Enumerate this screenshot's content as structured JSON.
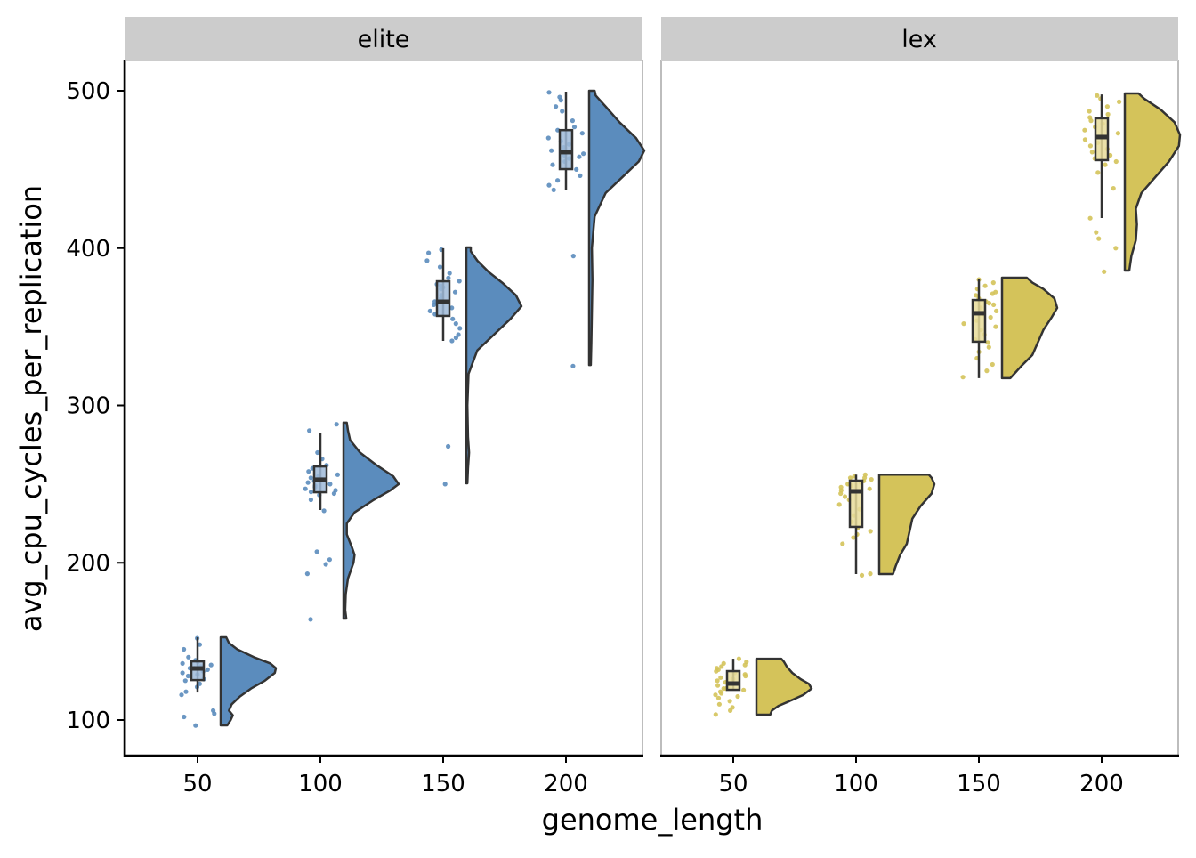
{
  "chart_data": {
    "type": "raincloud",
    "xlabel": "genome_length",
    "ylabel": "avg_cpu_cycles_per_replication",
    "ylim": [
      80,
      520
    ],
    "xlim": [
      20,
      230
    ],
    "x_ticks": [
      50,
      100,
      150,
      200
    ],
    "y_ticks": [
      100,
      200,
      300,
      400,
      500
    ],
    "grid": false,
    "panels": [
      {
        "facet": "elite",
        "color": "#5b8cbd",
        "box_fill": "#9fbad8",
        "groups": [
          {
            "x": 50,
            "whisker_low": 117.5,
            "q1": 125.4,
            "median": 132.8,
            "q3": 137.3,
            "whisker_high": 152.6,
            "violin_min": 96.6,
            "violin_max": 152.6,
            "density": [
              [
                96.6,
                0.12
              ],
              [
                100,
                0.18
              ],
              [
                103,
                0.22
              ],
              [
                106,
                0.15
              ],
              [
                110,
                0.2
              ],
              [
                115,
                0.35
              ],
              [
                120,
                0.55
              ],
              [
                125,
                0.8
              ],
              [
                130,
                0.98
              ],
              [
                133,
                1.0
              ],
              [
                136,
                0.9
              ],
              [
                140,
                0.6
              ],
              [
                145,
                0.3
              ],
              [
                149,
                0.15
              ],
              [
                152.6,
                0.1
              ]
            ],
            "points": [
              152,
              148,
              145,
              140,
              138,
              137,
              136,
              135,
              134,
              133,
              133,
              132,
              131,
              130,
              129,
              128,
              126,
              125,
              123,
              121,
              118,
              116,
              106,
              104,
              102,
              96.5
            ]
          },
          {
            "x": 100,
            "whisker_low": 233.5,
            "q1": 244.8,
            "median": 252.8,
            "q3": 261.2,
            "whisker_high": 282.2,
            "violin_min": 164.5,
            "violin_max": 289,
            "density": [
              [
                164.5,
                0.05
              ],
              [
                170,
                0.03
              ],
              [
                180,
                0.04
              ],
              [
                190,
                0.08
              ],
              [
                200,
                0.18
              ],
              [
                205,
                0.2
              ],
              [
                210,
                0.15
              ],
              [
                218,
                0.06
              ],
              [
                225,
                0.06
              ],
              [
                232,
                0.2
              ],
              [
                240,
                0.55
              ],
              [
                246,
                0.85
              ],
              [
                250,
                1.0
              ],
              [
                255,
                0.9
              ],
              [
                262,
                0.6
              ],
              [
                270,
                0.3
              ],
              [
                278,
                0.12
              ],
              [
                284,
                0.08
              ],
              [
                289,
                0.06
              ]
            ],
            "points": [
              288,
              284,
              270,
              266,
              262,
              260,
              258,
              256,
              255,
              254,
              253,
              252,
              251,
              250,
              249,
              248,
              247,
              246,
              245,
              244,
              243,
              240,
              233,
              207,
              202,
              199,
              193,
              164
            ]
          },
          {
            "x": 150,
            "whisker_low": 341,
            "q1": 356.9,
            "median": 365.9,
            "q3": 378.9,
            "whisker_high": 399.9,
            "violin_min": 250.5,
            "violin_max": 400.4,
            "density": [
              [
                250.5,
                0.02
              ],
              [
                260,
                0.03
              ],
              [
                270,
                0.05
              ],
              [
                280,
                0.03
              ],
              [
                300,
                0.02
              ],
              [
                320,
                0.04
              ],
              [
                335,
                0.2
              ],
              [
                345,
                0.5
              ],
              [
                355,
                0.8
              ],
              [
                363,
                1.0
              ],
              [
                370,
                0.9
              ],
              [
                378,
                0.65
              ],
              [
                385,
                0.4
              ],
              [
                392,
                0.2
              ],
              [
                398,
                0.08
              ],
              [
                400.4,
                0.08
              ]
            ],
            "points": [
              399,
              397,
              392,
              388,
              384,
              381,
              379,
              377,
              376,
              375,
              374,
              372,
              370,
              368,
              366,
              364,
              362,
              360,
              358,
              355,
              352,
              349,
              345,
              343,
              341,
              274,
              250
            ]
          },
          {
            "x": 200,
            "whisker_low": 437.2,
            "q1": 450.2,
            "median": 461,
            "q3": 475,
            "whisker_high": 499.4,
            "violin_min": 325.7,
            "violin_max": 500,
            "density": [
              [
                325.7,
                0.03
              ],
              [
                340,
                0.04
              ],
              [
                360,
                0.05
              ],
              [
                380,
                0.06
              ],
              [
                400,
                0.05
              ],
              [
                420,
                0.1
              ],
              [
                435,
                0.3
              ],
              [
                445,
                0.6
              ],
              [
                455,
                0.9
              ],
              [
                462,
                1.0
              ],
              [
                470,
                0.85
              ],
              [
                480,
                0.55
              ],
              [
                490,
                0.3
              ],
              [
                497,
                0.12
              ],
              [
                500,
                0.1
              ]
            ],
            "points": [
              499,
              496,
              494,
              490,
              487,
              481,
              477,
              475,
              473,
              470,
              468,
              466,
              464,
              462,
              460,
              459,
              458,
              457,
              455,
              453,
              450,
              446,
              443,
              440,
              437,
              395,
              325
            ]
          }
        ]
      },
      {
        "facet": "lex",
        "color": "#d4c35a",
        "box_fill": "#e8dc9a",
        "groups": [
          {
            "x": 50,
            "whisker_low": 119.2,
            "q1": 119.2,
            "median": 123.2,
            "q3": 131.1,
            "whisker_high": 139,
            "violin_min": 103.4,
            "violin_max": 139,
            "density": [
              [
                103.4,
                0.25
              ],
              [
                106,
                0.28
              ],
              [
                109,
                0.4
              ],
              [
                112,
                0.6
              ],
              [
                116,
                0.85
              ],
              [
                120,
                1.0
              ],
              [
                123,
                0.95
              ],
              [
                126,
                0.8
              ],
              [
                130,
                0.65
              ],
              [
                134,
                0.55
              ],
              [
                137,
                0.5
              ],
              [
                139,
                0.45
              ]
            ],
            "points": [
              139,
              137,
              136,
              135,
              134,
              133,
              132,
              131,
              130,
              129,
              128,
              127,
              126,
              125,
              124,
              123,
              122,
              121,
              120,
              120,
              119,
              118,
              117,
              116,
              115,
              114,
              112,
              110,
              108,
              106,
              103.5
            ]
          },
          {
            "x": 100,
            "whisker_low": 192.8,
            "q1": 222.8,
            "median": 245.4,
            "q3": 252.2,
            "whisker_high": 256,
            "violin_min": 192.8,
            "violin_max": 256,
            "density": [
              [
                192.8,
                0.25
              ],
              [
                198,
                0.3
              ],
              [
                205,
                0.38
              ],
              [
                212,
                0.5
              ],
              [
                220,
                0.55
              ],
              [
                228,
                0.6
              ],
              [
                236,
                0.75
              ],
              [
                244,
                0.95
              ],
              [
                250,
                1.0
              ],
              [
                254,
                0.95
              ],
              [
                256,
                0.9
              ]
            ],
            "points": [
              256,
              255,
              254,
              254,
              253,
              252,
              251,
              250,
              249,
              248,
              247,
              246,
              244,
              242,
              240,
              237,
              234,
              230,
              226,
              222,
              220,
              218,
              216,
              212,
              193,
              192
            ]
          },
          {
            "x": 150,
            "whisker_low": 317.3,
            "q1": 340.5,
            "median": 358.6,
            "q3": 367,
            "whisker_high": 380.6,
            "violin_min": 317.3,
            "violin_max": 381.2,
            "density": [
              [
                317.3,
                0.15
              ],
              [
                325,
                0.35
              ],
              [
                332,
                0.55
              ],
              [
                340,
                0.65
              ],
              [
                348,
                0.75
              ],
              [
                356,
                0.9
              ],
              [
                362,
                1.0
              ],
              [
                368,
                0.95
              ],
              [
                374,
                0.75
              ],
              [
                378,
                0.55
              ],
              [
                381.2,
                0.45
              ]
            ],
            "points": [
              380,
              378,
              376,
              374,
              372,
              371,
              370,
              368,
              366,
              365,
              364,
              362,
              360,
              358,
              356,
              354,
              352,
              350,
              348,
              345,
              342,
              340,
              337,
              334,
              330,
              326,
              322,
              318
            ]
          },
          {
            "x": 200,
            "whisker_low": 419.1,
            "q1": 455.9,
            "median": 470.6,
            "q3": 482.5,
            "whisker_high": 497.7,
            "violin_min": 385.7,
            "violin_max": 498.3,
            "density": [
              [
                385.7,
                0.08
              ],
              [
                395,
                0.12
              ],
              [
                405,
                0.2
              ],
              [
                415,
                0.22
              ],
              [
                425,
                0.2
              ],
              [
                435,
                0.3
              ],
              [
                445,
                0.55
              ],
              [
                455,
                0.8
              ],
              [
                465,
                0.98
              ],
              [
                472,
                1.0
              ],
              [
                480,
                0.9
              ],
              [
                488,
                0.65
              ],
              [
                495,
                0.35
              ],
              [
                498.3,
                0.25
              ]
            ],
            "points": [
              497,
              495,
              493,
              490,
              487,
              485,
              483,
              481,
              479,
              477,
              475,
              473,
              471,
              469,
              467,
              465,
              463,
              461,
              459,
              457,
              455,
              453,
              448,
              438,
              419,
              410,
              406,
              400,
              385
            ]
          }
        ]
      }
    ]
  }
}
